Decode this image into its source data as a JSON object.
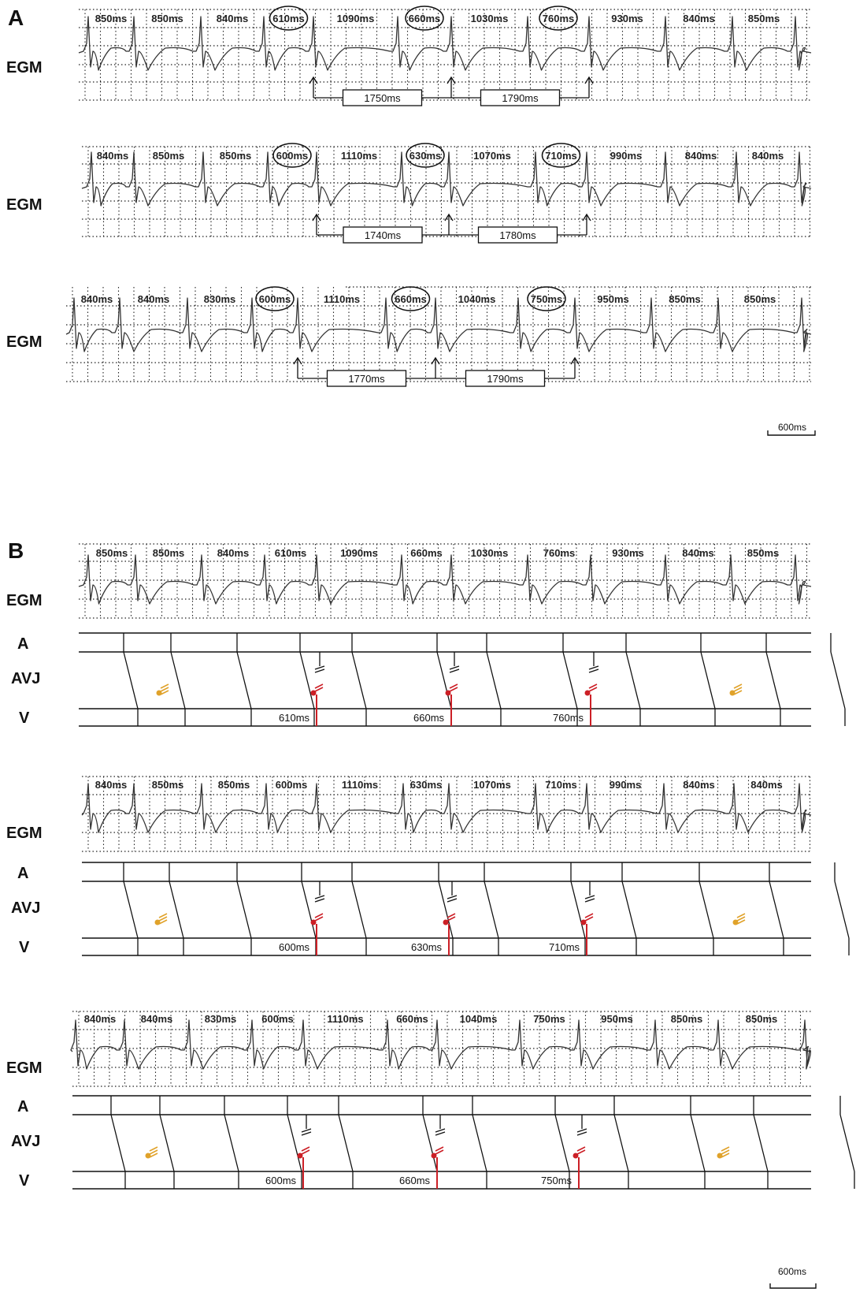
{
  "panels": [
    {
      "letter": "A",
      "strips": [
        {
          "label": "EGM",
          "intervals": [
            "850ms",
            "850ms",
            "840ms",
            "610ms",
            "1090ms",
            "660ms",
            "1030ms",
            "760ms",
            "930ms",
            "840ms",
            "850ms"
          ],
          "circled": [
            3,
            5,
            7
          ],
          "boxes": [
            "1750ms",
            "1790ms"
          ]
        },
        {
          "label": "EGM",
          "intervals": [
            "840ms",
            "850ms",
            "850ms",
            "600ms",
            "1110ms",
            "630ms",
            "1070ms",
            "710ms",
            "990ms",
            "840ms",
            "840ms"
          ],
          "circled": [
            3,
            5,
            7
          ],
          "boxes": [
            "1740ms",
            "1780ms"
          ]
        },
        {
          "label": "EGM",
          "intervals": [
            "840ms",
            "840ms",
            "830ms",
            "600ms",
            "1110ms",
            "660ms",
            "1040ms",
            "750ms",
            "950ms",
            "850ms",
            "850ms"
          ],
          "circled": [
            3,
            5,
            7
          ],
          "boxes": [
            "1770ms",
            "1790ms"
          ]
        }
      ],
      "scale_bar": "600ms"
    },
    {
      "letter": "B",
      "strips": [
        {
          "label": "EGM",
          "intervals": [
            "850ms",
            "850ms",
            "840ms",
            "610ms",
            "1090ms",
            "660ms",
            "1030ms",
            "760ms",
            "930ms",
            "840ms",
            "850ms"
          ],
          "ladder_v_labels": [
            "610ms",
            "660ms",
            "760ms"
          ]
        },
        {
          "label": "EGM",
          "intervals": [
            "840ms",
            "850ms",
            "850ms",
            "600ms",
            "1110ms",
            "630ms",
            "1070ms",
            "710ms",
            "990ms",
            "840ms",
            "840ms"
          ],
          "ladder_v_labels": [
            "600ms",
            "630ms",
            "710ms"
          ]
        },
        {
          "label": "EGM",
          "intervals": [
            "840ms",
            "840ms",
            "830ms",
            "600ms",
            "1110ms",
            "660ms",
            "1040ms",
            "750ms",
            "950ms",
            "850ms",
            "850ms"
          ],
          "ladder_v_labels": [
            "600ms",
            "660ms",
            "750ms"
          ]
        }
      ],
      "ladder_rows": [
        "A",
        "AVJ",
        "V"
      ],
      "scale_bar": "600ms"
    }
  ],
  "colors": {
    "trace": "#333333",
    "grid": "#222222",
    "block_red": "#cc1f26",
    "block_orange": "#e0a22a",
    "ladder": "#111111"
  }
}
